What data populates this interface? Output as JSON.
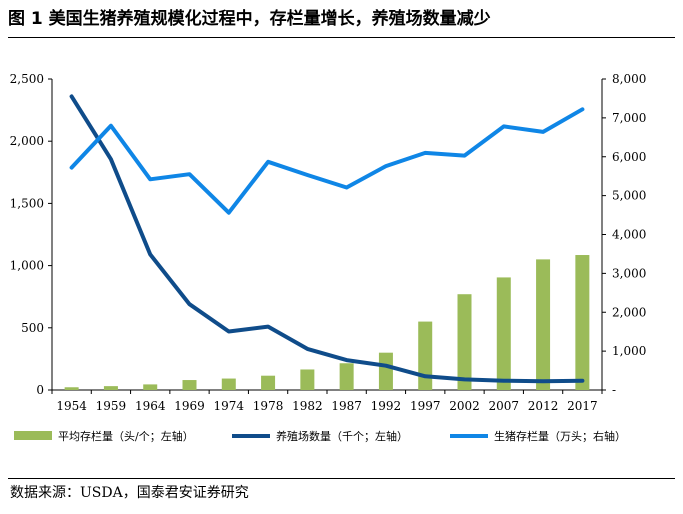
{
  "figure": {
    "title": "图 1  美国生猪养殖规模化过程中，存栏量增长，养殖场数量减少",
    "source": "数据来源：USDA，国泰君安证券研究"
  },
  "colors": {
    "bar": "#9bbb59",
    "farms_line": "#0f4c8a",
    "inventory_line": "#0f86e6"
  },
  "chart_data": {
    "type": "bar",
    "categories": [
      "1954",
      "1959",
      "1964",
      "1969",
      "1974",
      "1978",
      "1982",
      "1987",
      "1992",
      "1997",
      "2002",
      "2007",
      "2012",
      "2017"
    ],
    "series": [
      {
        "name": "平均存栏量（头/个；左轴）",
        "type": "bar",
        "axis": "left",
        "values": [
          22,
          31,
          45,
          80,
          92,
          115,
          165,
          215,
          300,
          550,
          770,
          905,
          1050,
          1085
        ]
      },
      {
        "name": "养殖场数量（千个；左轴）",
        "type": "line",
        "axis": "left",
        "values": [
          2360,
          1855,
          1090,
          690,
          470,
          510,
          330,
          240,
          195,
          110,
          85,
          75,
          70,
          75
        ]
      },
      {
        "name": "生猪存栏量（万头；右轴）",
        "type": "line",
        "axis": "right",
        "values": [
          5720,
          6800,
          5420,
          5550,
          4560,
          5870,
          5530,
          5210,
          5760,
          6100,
          6030,
          6780,
          6640,
          7220
        ]
      }
    ],
    "ylim": [
      0,
      2500
    ],
    "y2lim": [
      0,
      8000
    ],
    "y_ticks": [
      "0",
      "500",
      "1,000",
      "1,500",
      "2,000",
      "2,500"
    ],
    "y2_ticks": [
      "-",
      "1,000",
      "2,000",
      "3,000",
      "4,000",
      "5,000",
      "6,000",
      "7,000",
      "8,000"
    ],
    "grid": false,
    "legend_position": "bottom"
  }
}
